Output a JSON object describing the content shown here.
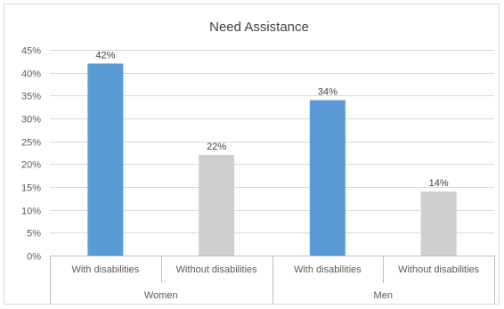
{
  "chart_data": {
    "type": "bar",
    "title": "Need Assistance",
    "ylim": [
      0,
      45
    ],
    "ytick_step": 5,
    "ytick_labels": [
      "0%",
      "5%",
      "10%",
      "15%",
      "20%",
      "25%",
      "30%",
      "35%",
      "40%",
      "45%"
    ],
    "groups": [
      "Women",
      "Men"
    ],
    "categories": [
      "With disabilities",
      "Without disabilities",
      "With disabilities",
      "Without disabilities"
    ],
    "values": [
      42,
      22,
      34,
      14
    ],
    "data_labels": [
      "42%",
      "22%",
      "34%",
      "14%"
    ],
    "colors": [
      "#5b9bd5",
      "#d0cece",
      "#5b9bd5",
      "#d0cece"
    ],
    "grid": true,
    "legend": "none"
  }
}
